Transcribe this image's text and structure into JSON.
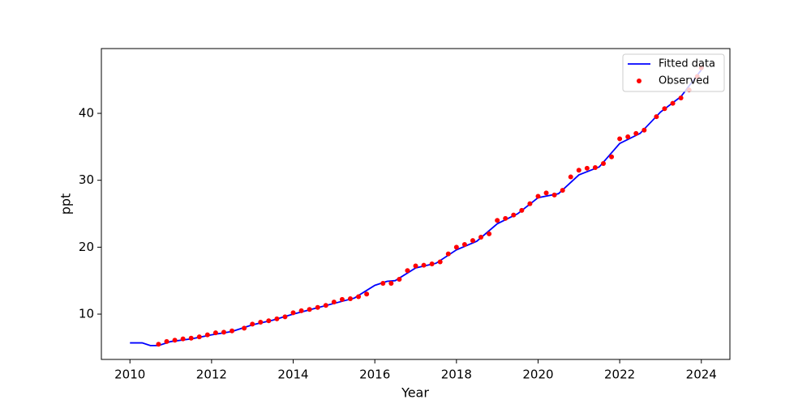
{
  "chart_data": {
    "type": "line",
    "x_label": "Year",
    "y_label": "ppt",
    "xlim": [
      2009.3,
      2024.7
    ],
    "ylim": [
      3.23,
      49.68
    ],
    "xticks": [
      2010,
      2012,
      2014,
      2016,
      2018,
      2020,
      2022,
      2024
    ],
    "yticks": [
      10,
      20,
      30,
      40
    ],
    "legend": "upper right",
    "series": [
      {
        "name": "Fitted data",
        "type": "line",
        "color": "#0000ff",
        "x": [
          2010.0,
          2010.3,
          2010.5,
          2010.7,
          2011.0,
          2011.5,
          2012.0,
          2012.5,
          2013.0,
          2013.5,
          2014.0,
          2014.5,
          2015.0,
          2015.5,
          2016.0,
          2016.3,
          2016.5,
          2017.0,
          2017.5,
          2018.0,
          2018.5,
          2019.0,
          2019.5,
          2020.0,
          2020.5,
          2021.0,
          2021.5,
          2022.0,
          2022.5,
          2023.0,
          2023.5,
          2024.0
        ],
        "values": [
          5.7,
          5.7,
          5.3,
          5.3,
          5.9,
          6.3,
          6.9,
          7.4,
          8.4,
          9.1,
          10.0,
          10.8,
          11.6,
          12.4,
          14.3,
          14.9,
          15.0,
          16.9,
          17.6,
          19.6,
          20.9,
          23.5,
          25.0,
          27.4,
          28.0,
          30.8,
          32.0,
          35.5,
          37.0,
          40.2,
          42.5,
          46.5
        ]
      },
      {
        "name": "Observed",
        "type": "scatter",
        "color": "#ff0000",
        "x": [
          2010.7,
          2010.9,
          2011.1,
          2011.3,
          2011.5,
          2011.7,
          2011.9,
          2012.1,
          2012.3,
          2012.5,
          2012.8,
          2013.0,
          2013.2,
          2013.4,
          2013.6,
          2013.8,
          2014.0,
          2014.2,
          2014.4,
          2014.6,
          2014.8,
          2015.0,
          2015.2,
          2015.4,
          2015.6,
          2015.8,
          2016.2,
          2016.4,
          2016.6,
          2016.8,
          2017.0,
          2017.2,
          2017.4,
          2017.6,
          2017.8,
          2018.0,
          2018.2,
          2018.4,
          2018.6,
          2018.8,
          2019.0,
          2019.2,
          2019.4,
          2019.6,
          2019.8,
          2020.0,
          2020.2,
          2020.4,
          2020.6,
          2020.8,
          2021.0,
          2021.2,
          2021.4,
          2021.6,
          2021.8,
          2022.0,
          2022.2,
          2022.4,
          2022.6,
          2022.9,
          2023.1,
          2023.3,
          2023.5,
          2023.7,
          2023.9,
          2024.0
        ],
        "values": [
          5.5,
          5.9,
          6.1,
          6.3,
          6.4,
          6.6,
          6.9,
          7.2,
          7.3,
          7.5,
          7.9,
          8.5,
          8.8,
          9.0,
          9.3,
          9.6,
          10.2,
          10.5,
          10.7,
          11.0,
          11.3,
          11.8,
          12.2,
          12.3,
          12.6,
          13.0,
          14.6,
          14.6,
          15.2,
          16.5,
          17.2,
          17.3,
          17.5,
          17.8,
          19.0,
          20.0,
          20.4,
          21.0,
          21.5,
          22.0,
          24.0,
          24.3,
          24.8,
          25.5,
          26.5,
          27.6,
          28.1,
          27.8,
          28.5,
          30.5,
          31.5,
          31.8,
          31.9,
          32.5,
          33.5,
          36.2,
          36.5,
          37.0,
          37.5,
          39.5,
          40.7,
          41.5,
          42.3,
          43.5,
          45.5,
          46.8
        ]
      }
    ]
  }
}
